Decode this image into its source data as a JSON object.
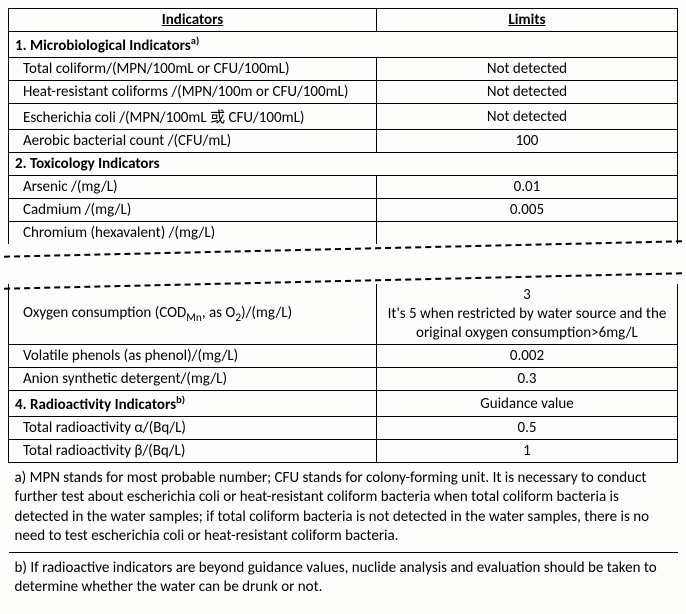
{
  "headers": {
    "indicators": "Indicators",
    "limits": "Limits"
  },
  "sections": {
    "s1": {
      "title_pre": "1. Microbiological Indicators",
      "title_sup": "a)",
      "rows": {
        "r1": {
          "label": "Total coliform/(MPN/100mL or CFU/100mL)",
          "limit": "Not detected"
        },
        "r2": {
          "label": "Heat-resistant coliforms /(MPN/100m or CFU/100mL)",
          "limit": "Not detected"
        },
        "r3": {
          "label": "Escherichia coli /(MPN/100mL 或 CFU/100mL)",
          "limit": "Not detected"
        },
        "r4": {
          "label": "Aerobic bacterial count /(CFU/mL)",
          "limit": "100"
        }
      }
    },
    "s2": {
      "title": "2. Toxicology Indicators",
      "rows": {
        "r1": {
          "label": "Arsenic /(mg/L)",
          "limit": "0.01"
        },
        "r2": {
          "label": "Cadmium /(mg/L)",
          "limit": "0.005"
        },
        "r3": {
          "label": "Chromium (hexavalent) /(mg/L)",
          "limit": ""
        }
      }
    },
    "s3": {
      "oxygen": {
        "label_pre": "Oxygen consumption (COD",
        "label_sub": "Mn",
        "label_mid": ", as O",
        "label_sub2": "2",
        "label_post": ")/(mg/L)",
        "limit_line1": "3",
        "limit_line2": "It's 5 when restricted by water source and the original oxygen consumption>6mg/L"
      },
      "rows": {
        "r2": {
          "label": "Volatile phenols (as phenol)/(mg/L)",
          "limit": "0.002"
        },
        "r3": {
          "label": "Anion synthetic detergent/(mg/L)",
          "limit": "0.3"
        }
      }
    },
    "s4": {
      "title_pre": "4. Radioactivity Indicators",
      "title_sup": "b)",
      "guidance": "Guidance value",
      "rows": {
        "r1": {
          "label": "Total radioactivity α/(Bq/L)",
          "limit": "0.5"
        },
        "r2": {
          "label": "Total radioactivity β/(Bq/L)",
          "limit": "1"
        }
      }
    }
  },
  "footnotes": {
    "a": "a) MPN stands for most probable number; CFU stands for colony-forming unit. It is necessary to conduct further test about escherichia coli or heat-resistant coliform bacteria when total coliform bacteria is detected in the water samples; if total coliform bacteria is not detected in the water samples, there is no need to test escherichia coli or heat-resistant coliform bacteria.",
    "b": "b) If radioactive indicators are beyond guidance values, nuclide analysis and evaluation should be taken to determine whether the water can be drunk or not."
  },
  "styling": {
    "font_family": "Calibri, Arial, sans-serif",
    "font_size_pt": 11,
    "border_color": "#000000",
    "background_color": "#fdfdfc",
    "tear_dash_color": "#000000",
    "col_widths": {
      "indicators_pct": 55,
      "limits_pct": 45
    }
  }
}
